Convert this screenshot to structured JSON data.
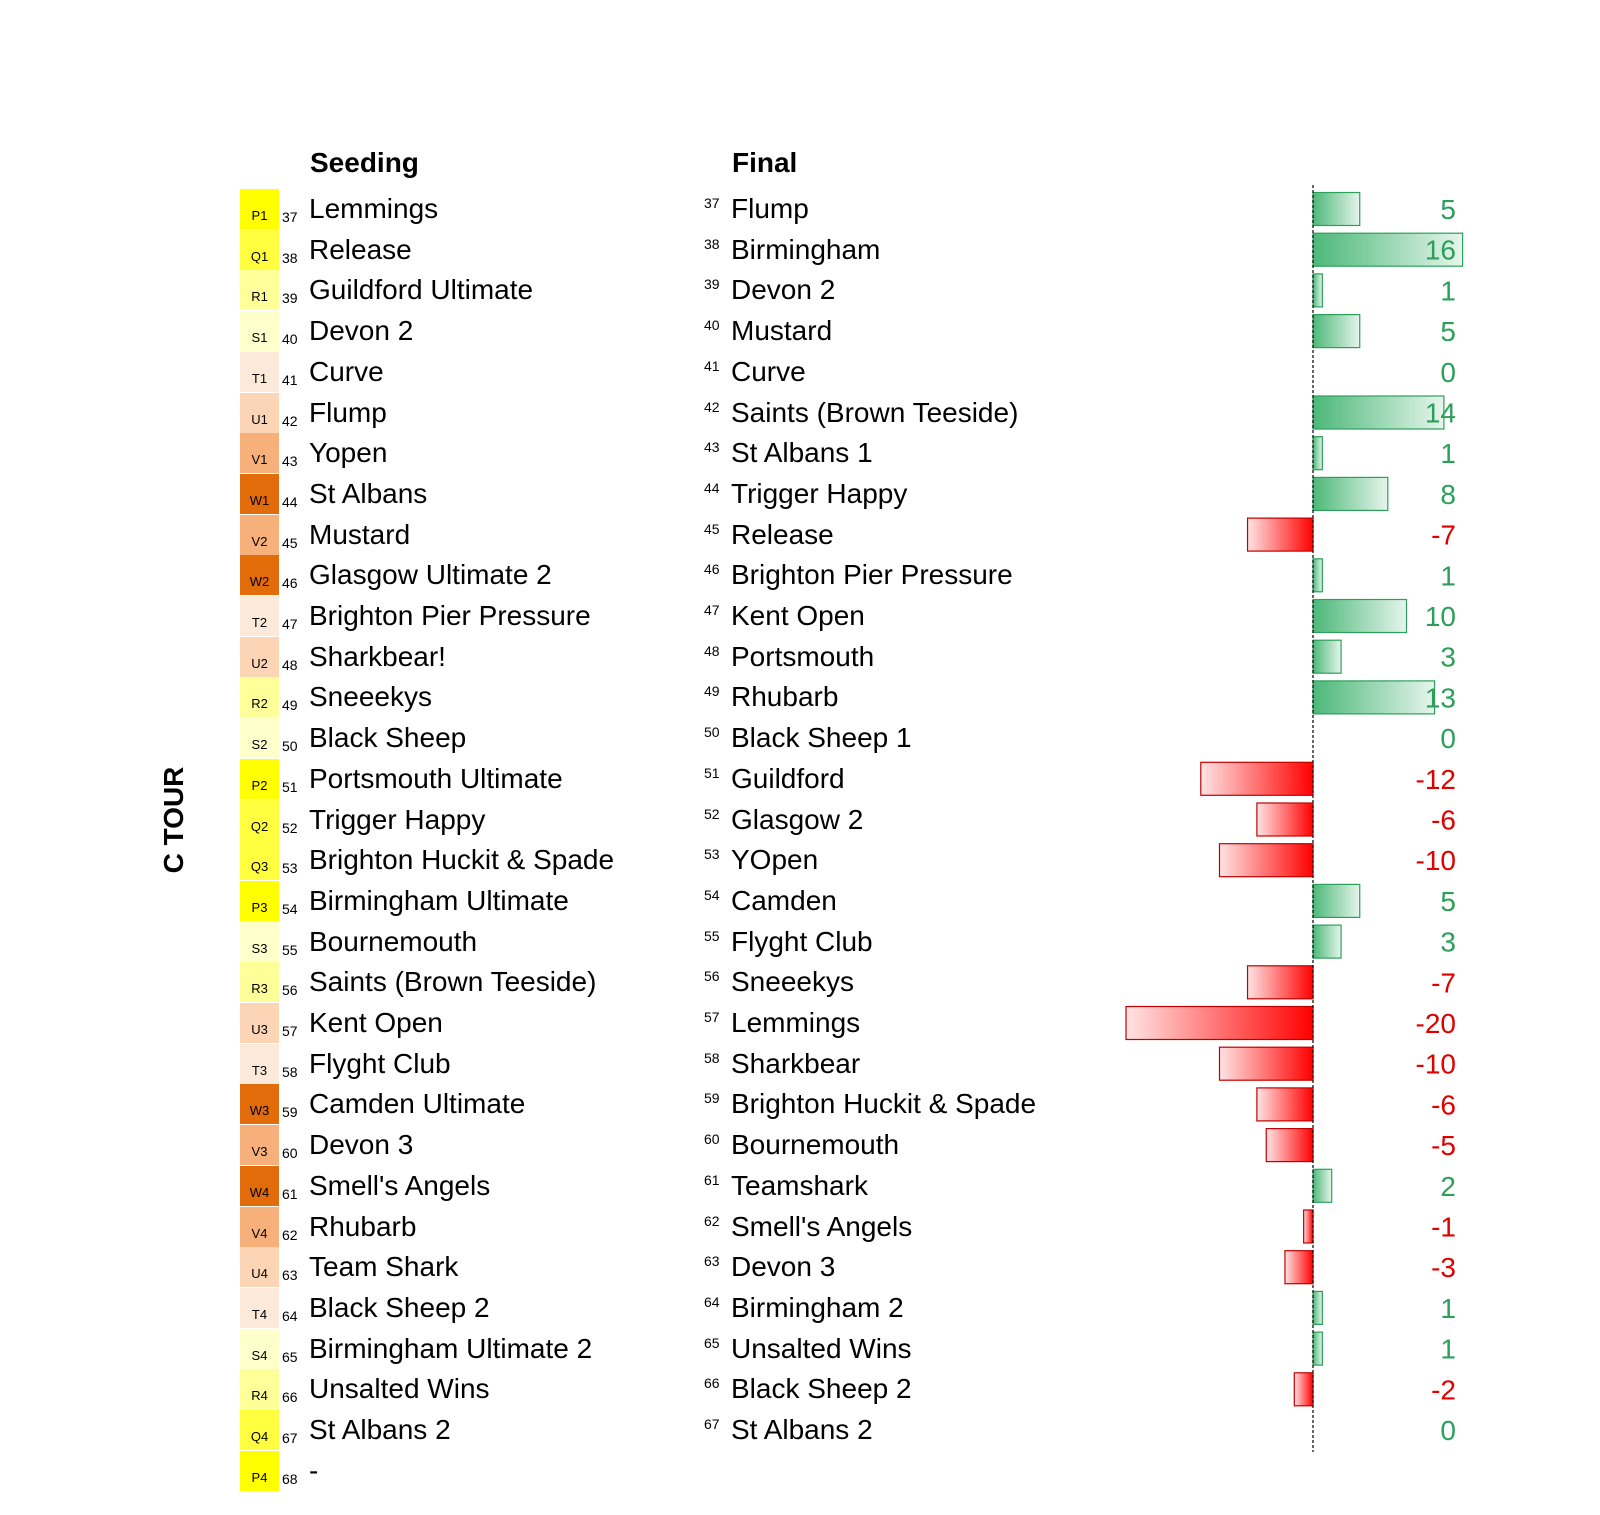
{
  "side_label": "C TOUR",
  "headers": {
    "seeding": "Seeding",
    "final": "Final"
  },
  "colors": {
    "P": "#ffff00",
    "Q": "#ffff40",
    "R": "#ffff99",
    "S": "#ffffcc",
    "T": "#fde9d9",
    "U": "#fbd5b5",
    "V": "#f7b07a",
    "W": "#e26b0a",
    "positive": "#2ca05a",
    "negative": "#e00000"
  },
  "seeding": [
    {
      "pool": "P1",
      "pos": "37",
      "team": "Lemmings"
    },
    {
      "pool": "Q1",
      "pos": "38",
      "team": "Release"
    },
    {
      "pool": "R1",
      "pos": "39",
      "team": "Guildford Ultimate"
    },
    {
      "pool": "S1",
      "pos": "40",
      "team": "Devon 2"
    },
    {
      "pool": "T1",
      "pos": "41",
      "team": "Curve"
    },
    {
      "pool": "U1",
      "pos": "42",
      "team": "Flump"
    },
    {
      "pool": "V1",
      "pos": "43",
      "team": "Yopen"
    },
    {
      "pool": "W1",
      "pos": "44",
      "team": "St Albans"
    },
    {
      "pool": "V2",
      "pos": "45",
      "team": "Mustard"
    },
    {
      "pool": "W2",
      "pos": "46",
      "team": "Glasgow Ultimate 2"
    },
    {
      "pool": "T2",
      "pos": "47",
      "team": "Brighton Pier Pressure"
    },
    {
      "pool": "U2",
      "pos": "48",
      "team": "Sharkbear!"
    },
    {
      "pool": "R2",
      "pos": "49",
      "team": "Sneeekys"
    },
    {
      "pool": "S2",
      "pos": "50",
      "team": "Black Sheep"
    },
    {
      "pool": "P2",
      "pos": "51",
      "team": "Portsmouth Ultimate"
    },
    {
      "pool": "Q2",
      "pos": "52",
      "team": "Trigger Happy"
    },
    {
      "pool": "Q3",
      "pos": "53",
      "team": "Brighton Huckit & Spade"
    },
    {
      "pool": "P3",
      "pos": "54",
      "team": "Birmingham Ultimate"
    },
    {
      "pool": "S3",
      "pos": "55",
      "team": "Bournemouth"
    },
    {
      "pool": "R3",
      "pos": "56",
      "team": "Saints (Brown Teeside)"
    },
    {
      "pool": "U3",
      "pos": "57",
      "team": "Kent Open"
    },
    {
      "pool": "T3",
      "pos": "58",
      "team": "Flyght Club"
    },
    {
      "pool": "W3",
      "pos": "59",
      "team": "Camden Ultimate"
    },
    {
      "pool": "V3",
      "pos": "60",
      "team": "Devon 3"
    },
    {
      "pool": "W4",
      "pos": "61",
      "team": "Smell's Angels"
    },
    {
      "pool": "V4",
      "pos": "62",
      "team": "Rhubarb"
    },
    {
      "pool": "U4",
      "pos": "63",
      "team": "Team Shark"
    },
    {
      "pool": "T4",
      "pos": "64",
      "team": "Black Sheep 2"
    },
    {
      "pool": "S4",
      "pos": "65",
      "team": "Birmingham Ultimate 2"
    },
    {
      "pool": "R4",
      "pos": "66",
      "team": "Unsalted Wins"
    },
    {
      "pool": "Q4",
      "pos": "67",
      "team": "St Albans 2"
    },
    {
      "pool": "P4",
      "pos": "68",
      "team": "-"
    }
  ],
  "chart_data": {
    "type": "bar",
    "orientation": "horizontal",
    "categories": [
      "37",
      "38",
      "39",
      "40",
      "41",
      "42",
      "43",
      "44",
      "45",
      "46",
      "47",
      "48",
      "49",
      "50",
      "51",
      "52",
      "53",
      "54",
      "55",
      "56",
      "57",
      "58",
      "59",
      "60",
      "61",
      "62",
      "63",
      "64",
      "65",
      "66",
      "67"
    ],
    "final_teams": [
      "Flump",
      "Birmingham",
      "Devon 2",
      "Mustard",
      "Curve",
      "Saints (Brown Teeside)",
      "St Albans 1",
      "Trigger Happy",
      "Release",
      "Brighton Pier Pressure",
      "Kent Open",
      "Portsmouth",
      "Rhubarb",
      "Black Sheep 1",
      "Guildford",
      "Glasgow 2",
      "YOpen",
      "Camden",
      "Flyght Club",
      "Sneeekys",
      "Lemmings",
      "Sharkbear",
      "Brighton Huckit & Spade",
      "Bournemouth",
      "Teamshark",
      "Smell's Angels",
      "Devon 3",
      "Birmingham 2",
      "Unsalted Wins",
      "Black Sheep 2",
      "St Albans 2"
    ],
    "values": [
      5,
      16,
      1,
      5,
      0,
      14,
      1,
      8,
      -7,
      1,
      10,
      3,
      13,
      0,
      -12,
      -6,
      -10,
      5,
      3,
      -7,
      -20,
      -10,
      -6,
      -5,
      2,
      -1,
      -3,
      1,
      1,
      -2,
      0
    ],
    "value_labels": [
      "5",
      "16",
      "1",
      "5",
      "0",
      "14",
      "1",
      "8",
      "-7",
      "1",
      "10",
      "3",
      "13",
      "0",
      "-12",
      "-6",
      "-10",
      "5",
      "3",
      "-7",
      "-20",
      "-10",
      "-6",
      "-5",
      "2",
      "-1",
      "-3",
      "1",
      "1",
      "-2",
      "0"
    ],
    "xlim": [
      -20,
      16
    ],
    "grid": false,
    "zero_line": "dashed"
  }
}
